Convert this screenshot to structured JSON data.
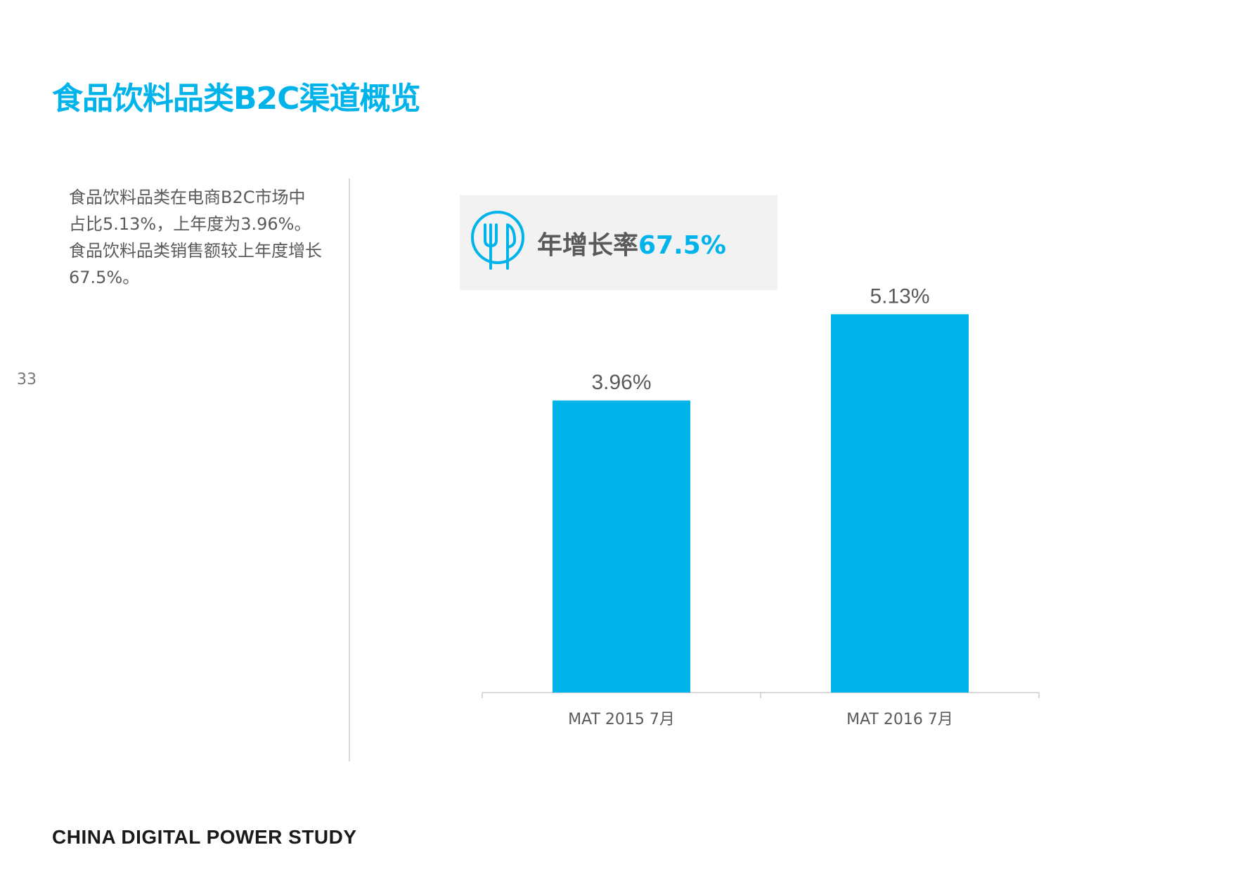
{
  "page": {
    "title": "食品饮料品类B2C渠道概览",
    "page_number": "33",
    "footer": "CHINA DIGITAL POWER STUDY"
  },
  "description": {
    "lines": [
      "食品饮料品类在电商B2C市场中",
      "占比5.13%，上年度为3.96%。",
      "食品饮料品类销售额较上年度增长",
      "67.5%。"
    ]
  },
  "highlight": {
    "icon": "fork-knife-icon",
    "label": "年增长率",
    "value": "67.5%"
  },
  "colors": {
    "accent": "#00b4eb",
    "text": "#5a5a5a",
    "box_background": "#f2f2f2"
  },
  "chart_data": {
    "type": "bar",
    "categories": [
      "MAT 2015 7月",
      "MAT 2016 7月"
    ],
    "values": [
      3.96,
      5.13
    ],
    "value_labels": [
      "3.96%",
      "5.13%"
    ],
    "ylim": [
      0,
      6
    ],
    "grid": false,
    "bar_color": "#00b4eb"
  }
}
